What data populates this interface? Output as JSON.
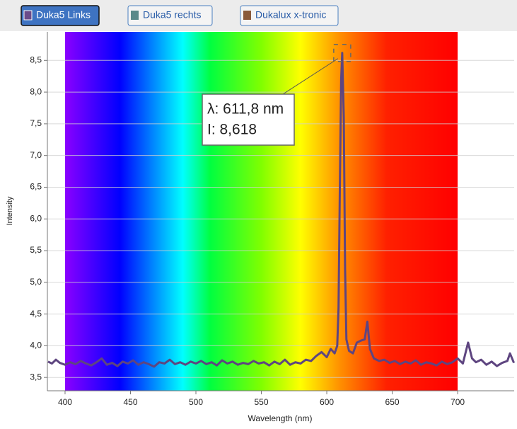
{
  "buttons": [
    {
      "label": "Duka5 Links",
      "color": "#6a4b8a",
      "active": true
    },
    {
      "label": "Duka5 rechts",
      "color": "#5b8a8a",
      "active": false
    },
    {
      "label": "Dukalux x-tronic",
      "color": "#8a5a3a",
      "active": false
    }
  ],
  "chart_data": {
    "type": "line",
    "x_label": "Wavelength (nm)",
    "y_label": "Intensity",
    "x": [
      387,
      390,
      393,
      396,
      400,
      404,
      408,
      412,
      416,
      420,
      424,
      428,
      432,
      436,
      440,
      444,
      448,
      452,
      456,
      460,
      464,
      468,
      472,
      476,
      480,
      484,
      488,
      492,
      496,
      500,
      504,
      508,
      512,
      516,
      520,
      524,
      528,
      532,
      536,
      540,
      544,
      548,
      552,
      556,
      560,
      564,
      568,
      572,
      576,
      580,
      584,
      588,
      592,
      596,
      600,
      603,
      606,
      608,
      609,
      610,
      611,
      611.8,
      613,
      614,
      615,
      617,
      620,
      623,
      626,
      629,
      631,
      633,
      636,
      640,
      644,
      648,
      652,
      656,
      660,
      664,
      668,
      672,
      676,
      680,
      684,
      688,
      692,
      696,
      700,
      704,
      708,
      711,
      714,
      718,
      722,
      726,
      730,
      734,
      738,
      740,
      743
    ],
    "series": [
      {
        "color": "#5e4580",
        "values": [
          3.75,
          3.72,
          3.78,
          3.73,
          3.7,
          3.74,
          3.71,
          3.76,
          3.72,
          3.69,
          3.74,
          3.8,
          3.7,
          3.73,
          3.68,
          3.75,
          3.72,
          3.77,
          3.7,
          3.74,
          3.71,
          3.67,
          3.74,
          3.72,
          3.78,
          3.71,
          3.74,
          3.7,
          3.75,
          3.72,
          3.76,
          3.71,
          3.74,
          3.69,
          3.77,
          3.72,
          3.75,
          3.7,
          3.73,
          3.71,
          3.76,
          3.72,
          3.74,
          3.69,
          3.75,
          3.71,
          3.78,
          3.7,
          3.74,
          3.72,
          3.78,
          3.76,
          3.84,
          3.9,
          3.82,
          3.95,
          3.88,
          4.0,
          4.6,
          6.5,
          8.2,
          8.618,
          7.6,
          5.2,
          4.1,
          3.92,
          3.88,
          4.05,
          4.08,
          4.1,
          4.38,
          3.95,
          3.8,
          3.76,
          3.78,
          3.73,
          3.76,
          3.71,
          3.75,
          3.72,
          3.77,
          3.7,
          3.74,
          3.72,
          3.69,
          3.75,
          3.71,
          3.74,
          3.8,
          3.72,
          4.05,
          3.8,
          3.74,
          3.78,
          3.7,
          3.75,
          3.68,
          3.73,
          3.76,
          3.88,
          3.73
        ]
      }
    ],
    "xlim": [
      386.5,
      743.2
    ],
    "xticks": [
      400,
      450,
      500,
      550,
      600,
      650,
      700
    ],
    "ylim": [
      3.29,
      8.95
    ],
    "yticks": [
      {
        "value": 3.5,
        "label": "3,5"
      },
      {
        "value": 4,
        "label": "4,0"
      },
      {
        "value": 4.5,
        "label": "4,5"
      },
      {
        "value": 5,
        "label": "5,0"
      },
      {
        "value": 5.5,
        "label": "5,5"
      },
      {
        "value": 6,
        "label": "6,0"
      },
      {
        "value": 6.5,
        "label": "6,5"
      },
      {
        "value": 7,
        "label": "7,0"
      },
      {
        "value": 7.5,
        "label": "7,5"
      },
      {
        "value": 8,
        "label": "8,0"
      },
      {
        "value": 8.5,
        "label": "8,5"
      }
    ],
    "grid": true,
    "annotation": {
      "lines": [
        "λ: 611,8 nm",
        "I: 8,618"
      ],
      "x": 611.8,
      "y": 8.618
    }
  }
}
